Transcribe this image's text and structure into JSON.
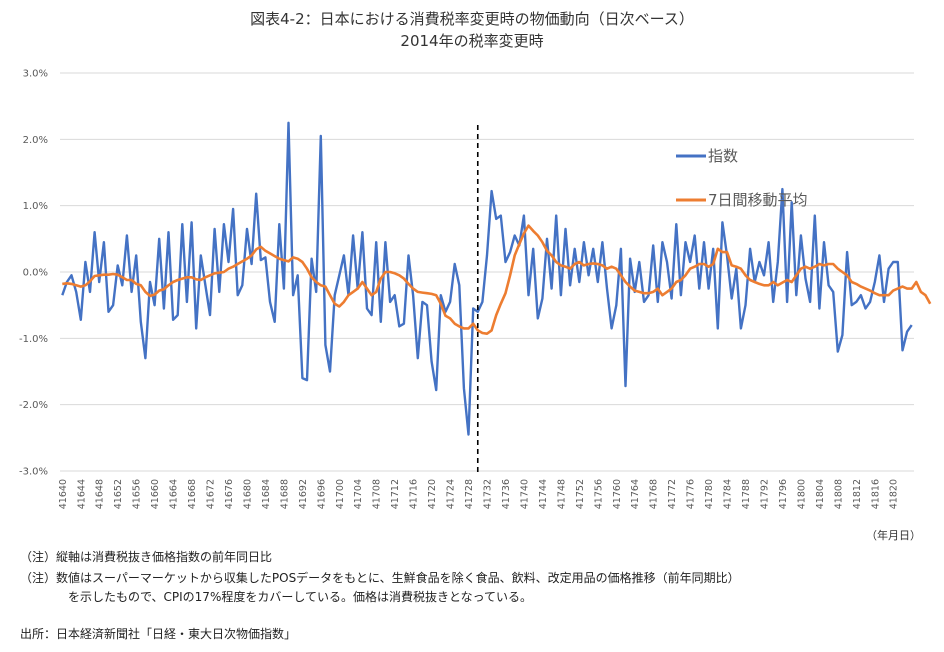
{
  "chart_data": {
    "type": "line",
    "title": "図表4-2：日本における消費税率変更時の物価動向（日次ベース）",
    "subtitle": "2014年の税率変更時",
    "xlabel": "（年月日）",
    "ylim": [
      -0.03,
      0.03
    ],
    "yticks": [
      "3.0%",
      "2.0%",
      "1.0%",
      "0.0%",
      "-1.0%",
      "-2.0%",
      "-3.0%"
    ],
    "x_start": 41640,
    "x_end": 41820,
    "x_tick_step": 4,
    "tax_change_x": 41730,
    "legend_position": "right",
    "series": [
      {
        "name": "指数",
        "color": "#4472C4",
        "values": [
          -0.0035,
          -0.0015,
          -0.0005,
          -0.003,
          -0.0072,
          0.0015,
          -0.003,
          0.006,
          -0.0015,
          0.0045,
          -0.006,
          -0.005,
          0.001,
          -0.002,
          0.0055,
          -0.003,
          0.0025,
          -0.0075,
          -0.013,
          -0.0015,
          -0.005,
          0.005,
          -0.0055,
          0.006,
          -0.0072,
          -0.0065,
          0.0072,
          -0.0045,
          0.0075,
          -0.0085,
          0.0025,
          -0.002,
          -0.0065,
          0.0065,
          -0.003,
          0.0072,
          0.0015,
          0.0095,
          -0.0035,
          -0.002,
          0.0065,
          0.0012,
          0.0118,
          0.0018,
          0.0022,
          -0.0045,
          -0.0075,
          0.0072,
          -0.0025,
          0.0225,
          -0.0035,
          -0.0005,
          -0.016,
          -0.0163,
          0.002,
          -0.003,
          0.0205,
          -0.011,
          -0.015,
          -0.0035,
          -0.0005,
          0.0025,
          -0.0035,
          0.0055,
          -0.0025,
          0.006,
          -0.0055,
          -0.0065,
          0.0045,
          -0.0075,
          0.0045,
          -0.0045,
          -0.0035,
          -0.0082,
          -0.0078,
          0.0025,
          -0.0035,
          -0.013,
          -0.0045,
          -0.005,
          -0.0135,
          -0.0178,
          -0.0035,
          -0.006,
          -0.0045,
          0.0012,
          -0.002,
          -0.0175,
          -0.0245,
          -0.0055,
          -0.006,
          -0.0045,
          0.0025,
          0.0122,
          0.008,
          0.0085,
          0.0015,
          0.003,
          0.0055,
          0.004,
          0.0085,
          -0.0035,
          0.0035,
          -0.007,
          -0.004,
          0.005,
          -0.0025,
          0.0085,
          -0.0035,
          0.0065,
          -0.002,
          0.0035,
          -0.0015,
          0.0045,
          -0.0005,
          0.0035,
          -0.0015,
          0.0045,
          -0.0025,
          -0.0085,
          -0.005,
          0.0035,
          -0.0172,
          0.002,
          -0.003,
          0.0015,
          -0.0045,
          -0.0035,
          0.004,
          -0.0045,
          0.0045,
          0.0015,
          -0.004,
          0.0072,
          -0.0035,
          0.0045,
          0.0015,
          0.0055,
          -0.0025,
          0.0045,
          -0.0025,
          0.0035,
          -0.0085,
          0.0075,
          0.0025,
          -0.004,
          0.0005,
          -0.0085,
          -0.005,
          0.0035,
          -0.0015,
          0.0015,
          -0.0005,
          0.0045,
          -0.0045,
          0.0015,
          0.0125,
          -0.0045,
          0.0105,
          -0.0035,
          0.0055,
          -0.001,
          -0.0045,
          0.0085,
          -0.0055,
          0.0045,
          -0.002,
          -0.003,
          -0.012,
          -0.0095,
          0.003,
          -0.005,
          -0.0045,
          -0.0035,
          -0.0055,
          -0.0045,
          -0.0015,
          0.0025,
          -0.0045,
          0.0005,
          0.0015,
          0.0015,
          -0.0118,
          -0.009,
          -0.008
        ]
      },
      {
        "name": "7日間移動平均",
        "color": "#ED7D31",
        "values": [
          -0.0018,
          -0.0017,
          -0.0018,
          -0.002,
          -0.0022,
          -0.002,
          -0.0014,
          -0.0006,
          -0.0005,
          -0.0004,
          -0.0004,
          -0.0003,
          -0.0004,
          -0.0008,
          -0.0012,
          -0.0012,
          -0.0018,
          -0.002,
          -0.003,
          -0.0036,
          -0.0034,
          -0.0028,
          -0.0026,
          -0.002,
          -0.0015,
          -0.0012,
          -0.001,
          -0.0008,
          -0.0008,
          -0.0011,
          -0.0012,
          -0.0008,
          -0.0005,
          -0.0002,
          -0.0001,
          0.0,
          0.0005,
          0.0008,
          0.0012,
          0.0016,
          0.002,
          0.0025,
          0.0034,
          0.0038,
          0.0032,
          0.0028,
          0.0024,
          0.002,
          0.0018,
          0.0016,
          0.0022,
          0.002,
          0.0015,
          0.0005,
          -0.0008,
          -0.0015,
          -0.002,
          -0.0022,
          -0.0035,
          -0.0048,
          -0.0052,
          -0.0045,
          -0.0035,
          -0.003,
          -0.0025,
          -0.0015,
          -0.0025,
          -0.0035,
          -0.003,
          -0.001,
          0.0,
          0.0,
          -0.0002,
          -0.0005,
          -0.001,
          -0.0018,
          -0.0025,
          -0.003,
          -0.0031,
          -0.0032,
          -0.0033,
          -0.0035,
          -0.0048,
          -0.0066,
          -0.007,
          -0.0078,
          -0.0082,
          -0.0085,
          -0.0085,
          -0.0078,
          -0.0088,
          -0.0092,
          -0.0093,
          -0.0088,
          -0.0065,
          -0.0048,
          -0.0032,
          -0.0005,
          0.0025,
          0.0042,
          0.0058,
          0.007,
          0.0062,
          0.0055,
          0.0045,
          0.0032,
          0.0025,
          0.0015,
          0.001,
          0.0008,
          0.0005,
          0.0012,
          0.0015,
          0.001,
          0.0012,
          0.0013,
          0.0012,
          0.001,
          0.0005,
          0.0008,
          0.0005,
          -0.0005,
          -0.0015,
          -0.0022,
          -0.0028,
          -0.003,
          -0.0032,
          -0.0032,
          -0.003,
          -0.0025,
          -0.0035,
          -0.003,
          -0.0025,
          -0.0015,
          -0.0012,
          -0.0005,
          0.0005,
          0.0008,
          0.0012,
          0.0012,
          0.0008,
          0.0012,
          0.0035,
          0.003,
          0.003,
          0.001,
          0.0008,
          0.0005,
          -0.0005,
          -0.0012,
          -0.0015,
          -0.0018,
          -0.002,
          -0.002,
          -0.0015,
          -0.002,
          -0.0016,
          -0.0012,
          -0.0015,
          -0.0005,
          0.0005,
          0.0008,
          0.0005,
          0.0008,
          0.0012,
          0.001,
          0.0012,
          0.0012,
          0.0005,
          0.0,
          -0.0005,
          -0.0015,
          -0.0018,
          -0.0022,
          -0.0025,
          -0.0028,
          -0.0032,
          -0.0035,
          -0.0035,
          -0.0035,
          -0.0028,
          -0.0025,
          -0.0022,
          -0.0025,
          -0.0025,
          -0.0015,
          -0.003,
          -0.0035,
          -0.0048
        ]
      }
    ]
  },
  "notes": {
    "note1": "（注）縦軸は消費税抜き価格指数の前年同日比",
    "note2": "（注）数値はスーパーマーケットから収集したPOSデータをもとに、生鮮食品を除く食品、飲料、改定用品の価格推移（前年同期比）",
    "note3": "を示したもので、CPIの17%程度をカバーしている。価格は消費税抜きとなっている。",
    "source": "出所：日本経済新聞社「日経・東大日次物価指数」"
  }
}
